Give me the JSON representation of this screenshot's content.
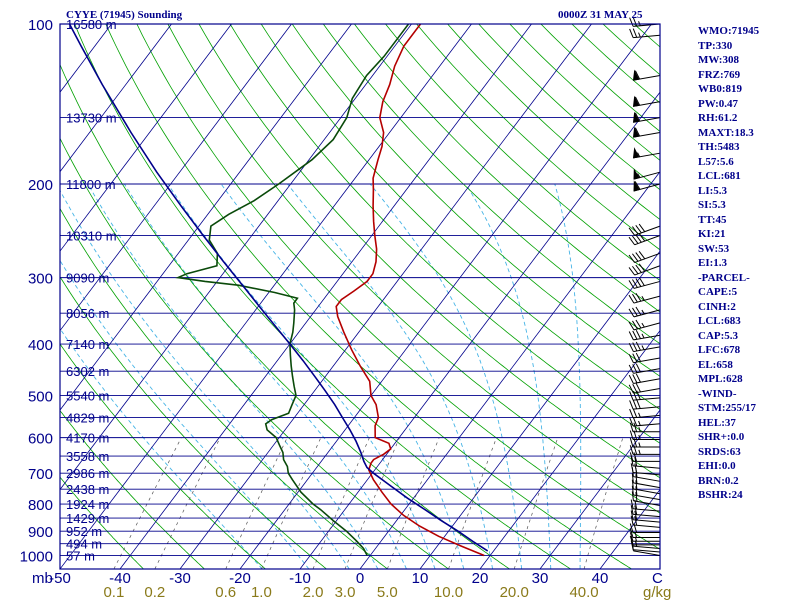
{
  "header": {
    "station": "CYYE (71945) Sounding",
    "time": "0000Z 31 MAY 25"
  },
  "stats": [
    "WMO:71945",
    "TP:330",
    "MW:308",
    "FRZ:769",
    "WB0:819",
    "PW:0.47",
    "RH:61.2",
    "MAXT:18.3",
    "TH:5483",
    "L57:5.6",
    "LCL:681",
    "LI:5.3",
    "SI:5.3",
    "TT:45",
    "KI:21",
    "SW:53",
    "EI:1.3",
    "-PARCEL-",
    "CAPE:5",
    "CINH:2",
    "LCL:683",
    "CAP:5.3",
    "LFC:678",
    "EL:658",
    "MPL:628",
    "-WIND-",
    "STM:255/17",
    "HEL:37",
    "SHR+:0.0",
    "SRDS:63",
    "EHI:0.0",
    "BRN:0.2",
    "BSHR:24"
  ],
  "colors": {
    "frame": "#00008b",
    "isobar": "#00008b",
    "isotherm": "#00008b",
    "dry_adiabat": "#00a000",
    "moist_adiabat": "#46b4e6",
    "mixing_ratio": "#555555",
    "temperature": "#b40000",
    "dewpoint": "#0a4a0a",
    "parcel": "#00008b",
    "axis_label": "#00008b",
    "mixing_label": "#8a7a1a",
    "wind": "#000000"
  },
  "chart_data": {
    "type": "line",
    "diagram": "skew-t",
    "x_unit": "mb",
    "y_unit": "C",
    "pressure_ticks": [
      100,
      200,
      300,
      400,
      500,
      600,
      700,
      800,
      900,
      1000
    ],
    "temperature_ticks": [
      -50,
      -40,
      -30,
      -20,
      -10,
      0,
      10,
      20,
      30,
      40
    ],
    "temperature_tick_labels": [
      "-50",
      "-40",
      "-30",
      "-20",
      "-10",
      "0",
      "10",
      "20",
      "30",
      "40"
    ],
    "axis_corner_label": "mb",
    "edge_label": "C",
    "mixing_ratio_labels": [
      "0.1",
      "0.2",
      "0.6",
      "1.0",
      "2.0",
      "3.0",
      "5.0",
      "10.0",
      "20.0",
      "40.0"
    ],
    "mixing_ratio_unit": "g/kg",
    "height_levels": [
      {
        "p": 100,
        "label": "16580 m"
      },
      {
        "p": 150,
        "label": "13730 m"
      },
      {
        "p": 200,
        "label": "11800 m"
      },
      {
        "p": 250,
        "label": "10310 m"
      },
      {
        "p": 300,
        "label": "9090 m"
      },
      {
        "p": 350,
        "label": "8056 m"
      },
      {
        "p": 400,
        "label": "7140 m"
      },
      {
        "p": 450,
        "label": "6302 m"
      },
      {
        "p": 500,
        "label": "5540 m"
      },
      {
        "p": 550,
        "label": "4829 m"
      },
      {
        "p": 600,
        "label": "4170 m"
      },
      {
        "p": 650,
        "label": "3558 m"
      },
      {
        "p": 700,
        "label": "2986 m"
      },
      {
        "p": 750,
        "label": "2438 m"
      },
      {
        "p": 800,
        "label": "1924 m"
      },
      {
        "p": 850,
        "label": "1429 m"
      },
      {
        "p": 900,
        "label": "952 m"
      },
      {
        "p": 950,
        "label": "494 m"
      },
      {
        "p": 1000,
        "label": "57 m"
      }
    ],
    "series": [
      {
        "key": "temperature",
        "points": [
          [
            1000,
            19.0
          ],
          [
            960,
            14.0
          ],
          [
            920,
            9.0
          ],
          [
            880,
            4.5
          ],
          [
            840,
            0.5
          ],
          [
            800,
            -3.0
          ],
          [
            760,
            -6.0
          ],
          [
            720,
            -9.0
          ],
          [
            690,
            -11.0
          ],
          [
            670,
            -11.5
          ],
          [
            660,
            -11.5
          ],
          [
            645,
            -10.5
          ],
          [
            630,
            -10.0
          ],
          [
            615,
            -11.0
          ],
          [
            600,
            -14.0
          ],
          [
            570,
            -15.5
          ],
          [
            550,
            -16.0
          ],
          [
            520,
            -18.0
          ],
          [
            500,
            -20.0
          ],
          [
            470,
            -22.0
          ],
          [
            440,
            -25.5
          ],
          [
            410,
            -29.0
          ],
          [
            380,
            -32.5
          ],
          [
            355,
            -35.5
          ],
          [
            340,
            -37.0
          ],
          [
            330,
            -37.0
          ],
          [
            318,
            -36.0
          ],
          [
            305,
            -35.0
          ],
          [
            295,
            -35.0
          ],
          [
            280,
            -36.0
          ],
          [
            265,
            -37.5
          ],
          [
            250,
            -39.5
          ],
          [
            235,
            -41.5
          ],
          [
            220,
            -43.5
          ],
          [
            205,
            -45.5
          ],
          [
            195,
            -47.0
          ],
          [
            180,
            -48.5
          ],
          [
            170,
            -49.5
          ],
          [
            160,
            -51.0
          ],
          [
            150,
            -53.5
          ],
          [
            140,
            -55.0
          ],
          [
            130,
            -56.0
          ],
          [
            120,
            -57.5
          ],
          [
            110,
            -58.5
          ],
          [
            100,
            -58.5
          ]
        ]
      },
      {
        "key": "dewpoint",
        "points": [
          [
            1000,
            -0.5
          ],
          [
            970,
            -2.0
          ],
          [
            940,
            -4.0
          ],
          [
            900,
            -7.0
          ],
          [
            860,
            -10.5
          ],
          [
            820,
            -14.0
          ],
          [
            800,
            -16.0
          ],
          [
            760,
            -19.5
          ],
          [
            720,
            -22.5
          ],
          [
            700,
            -24.0
          ],
          [
            680,
            -25.0
          ],
          [
            660,
            -26.5
          ],
          [
            640,
            -27.5
          ],
          [
            620,
            -29.0
          ],
          [
            600,
            -30.5
          ],
          [
            580,
            -33.0
          ],
          [
            565,
            -34.0
          ],
          [
            555,
            -33.5
          ],
          [
            540,
            -31.5
          ],
          [
            520,
            -32.0
          ],
          [
            500,
            -32.5
          ],
          [
            480,
            -34.0
          ],
          [
            460,
            -35.5
          ],
          [
            440,
            -37.0
          ],
          [
            420,
            -38.5
          ],
          [
            400,
            -40.0
          ],
          [
            380,
            -41.0
          ],
          [
            365,
            -42.0
          ],
          [
            345,
            -43.5
          ],
          [
            335,
            -44.5
          ],
          [
            328,
            -44.5
          ],
          [
            320,
            -49.0
          ],
          [
            310,
            -56.0
          ],
          [
            305,
            -62.0
          ],
          [
            300,
            -67.0
          ],
          [
            295,
            -66.0
          ],
          [
            285,
            -62.0
          ],
          [
            270,
            -63.5
          ],
          [
            255,
            -66.5
          ],
          [
            240,
            -68.0
          ],
          [
            228,
            -66.5
          ],
          [
            215,
            -64.0
          ],
          [
            200,
            -62.0
          ],
          [
            180,
            -59.5
          ],
          [
            165,
            -58.5
          ],
          [
            150,
            -59.0
          ],
          [
            138,
            -60.5
          ],
          [
            125,
            -61.0
          ],
          [
            115,
            -60.5
          ],
          [
            105,
            -60.5
          ],
          [
            100,
            -60.5
          ]
        ]
      },
      {
        "key": "parcel",
        "points": [
          [
            980,
            19.0
          ],
          [
            940,
            15.3
          ],
          [
            900,
            11.6
          ],
          [
            860,
            7.5
          ],
          [
            820,
            3.4
          ],
          [
            780,
            -1.0
          ],
          [
            740,
            -5.3
          ],
          [
            700,
            -9.8
          ],
          [
            683,
            -11.6
          ],
          [
            665,
            -12.9
          ],
          [
            640,
            -14.5
          ],
          [
            610,
            -16.7
          ],
          [
            580,
            -19.2
          ],
          [
            550,
            -22.0
          ],
          [
            520,
            -24.9
          ],
          [
            490,
            -28.2
          ],
          [
            460,
            -31.8
          ],
          [
            430,
            -35.7
          ],
          [
            400,
            -40.0
          ],
          [
            370,
            -44.7
          ],
          [
            340,
            -49.8
          ],
          [
            310,
            -55.3
          ],
          [
            280,
            -61.4
          ],
          [
            250,
            -68.1
          ],
          [
            220,
            -75.5
          ],
          [
            190,
            -83.8
          ],
          [
            160,
            -93.1
          ],
          [
            130,
            -103.9
          ],
          [
            110,
            -112.3
          ],
          [
            100,
            -117.0
          ]
        ]
      }
    ],
    "wind_barbs": [
      {
        "p": 1000,
        "dir": 260,
        "spd": 10
      },
      {
        "p": 985,
        "dir": 265,
        "spd": 10
      },
      {
        "p": 970,
        "dir": 265,
        "spd": 15
      },
      {
        "p": 955,
        "dir": 270,
        "spd": 15
      },
      {
        "p": 940,
        "dir": 270,
        "spd": 15
      },
      {
        "p": 925,
        "dir": 270,
        "spd": 15
      },
      {
        "p": 905,
        "dir": 270,
        "spd": 20
      },
      {
        "p": 885,
        "dir": 265,
        "spd": 20
      },
      {
        "p": 865,
        "dir": 265,
        "spd": 20
      },
      {
        "p": 845,
        "dir": 265,
        "spd": 20
      },
      {
        "p": 825,
        "dir": 265,
        "spd": 20
      },
      {
        "p": 805,
        "dir": 260,
        "spd": 20
      },
      {
        "p": 785,
        "dir": 260,
        "spd": 20
      },
      {
        "p": 765,
        "dir": 260,
        "spd": 20
      },
      {
        "p": 745,
        "dir": 260,
        "spd": 20
      },
      {
        "p": 725,
        "dir": 260,
        "spd": 20
      },
      {
        "p": 705,
        "dir": 265,
        "spd": 20
      },
      {
        "p": 685,
        "dir": 265,
        "spd": 20
      },
      {
        "p": 665,
        "dir": 270,
        "spd": 20
      },
      {
        "p": 645,
        "dir": 270,
        "spd": 25
      },
      {
        "p": 625,
        "dir": 270,
        "spd": 25
      },
      {
        "p": 605,
        "dir": 270,
        "spd": 25
      },
      {
        "p": 585,
        "dir": 270,
        "spd": 25
      },
      {
        "p": 565,
        "dir": 275,
        "spd": 25
      },
      {
        "p": 545,
        "dir": 275,
        "spd": 25
      },
      {
        "p": 525,
        "dir": 275,
        "spd": 30
      },
      {
        "p": 505,
        "dir": 275,
        "spd": 30
      },
      {
        "p": 485,
        "dir": 280,
        "spd": 30
      },
      {
        "p": 465,
        "dir": 280,
        "spd": 30
      },
      {
        "p": 445,
        "dir": 280,
        "spd": 30
      },
      {
        "p": 425,
        "dir": 280,
        "spd": 30
      },
      {
        "p": 405,
        "dir": 280,
        "spd": 35
      },
      {
        "p": 385,
        "dir": 280,
        "spd": 35
      },
      {
        "p": 365,
        "dir": 285,
        "spd": 35
      },
      {
        "p": 345,
        "dir": 285,
        "spd": 35
      },
      {
        "p": 325,
        "dir": 285,
        "spd": 35
      },
      {
        "p": 305,
        "dir": 285,
        "spd": 40
      },
      {
        "p": 285,
        "dir": 290,
        "spd": 40
      },
      {
        "p": 270,
        "dir": 290,
        "spd": 40
      },
      {
        "p": 250,
        "dir": 290,
        "spd": 40
      },
      {
        "p": 240,
        "dir": 290,
        "spd": 40
      },
      {
        "p": 200,
        "dir": 285,
        "spd": 60
      },
      {
        "p": 190,
        "dir": 285,
        "spd": 55
      },
      {
        "p": 175,
        "dir": 280,
        "spd": 55
      },
      {
        "p": 160,
        "dir": 280,
        "spd": 60
      },
      {
        "p": 150,
        "dir": 280,
        "spd": 60
      },
      {
        "p": 140,
        "dir": 280,
        "spd": 60
      },
      {
        "p": 125,
        "dir": 280,
        "spd": 60
      },
      {
        "p": 105,
        "dir": 275,
        "spd": 25
      },
      {
        "p": 100,
        "dir": 275,
        "spd": 25
      }
    ]
  }
}
